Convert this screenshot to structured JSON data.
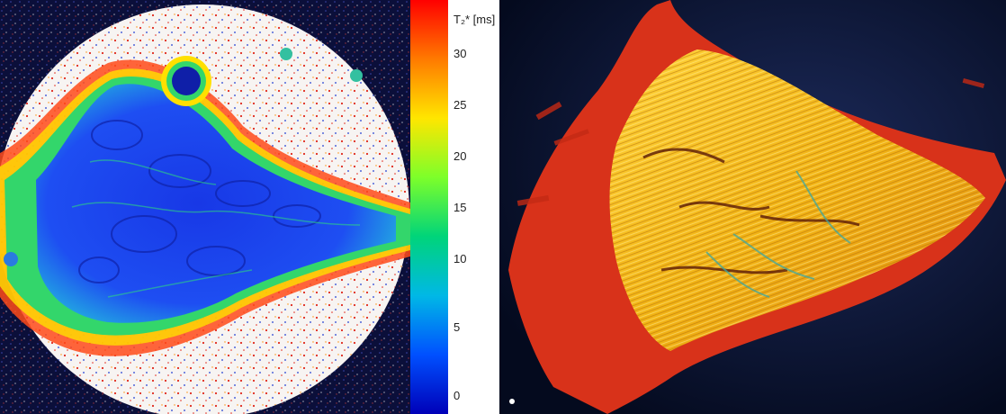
{
  "colorbar": {
    "title": "T₂* [ms]",
    "ticks": [
      "30",
      "25",
      "20",
      "15",
      "10",
      "5",
      "0"
    ],
    "range": [
      0,
      33
    ],
    "gradient": [
      "#ff0000",
      "#ff7a00",
      "#ffe600",
      "#7dff2a",
      "#00d47a",
      "#00b8e6",
      "#0050ff",
      "#0000b8"
    ]
  },
  "panels": {
    "left": "T2* map (colour-coded)",
    "right": "polarized light image"
  },
  "colors": {
    "background_dark": "#0b0f3a",
    "disc": "#f7f4f2",
    "tissue_blue": "#1f3ef0",
    "rim_green": "#33d66b",
    "speckle_red": "#e0281c",
    "polarized_bg": "#040a1e",
    "polarized_gold": "#f5c21a",
    "polarized_red": "#d8321a"
  }
}
